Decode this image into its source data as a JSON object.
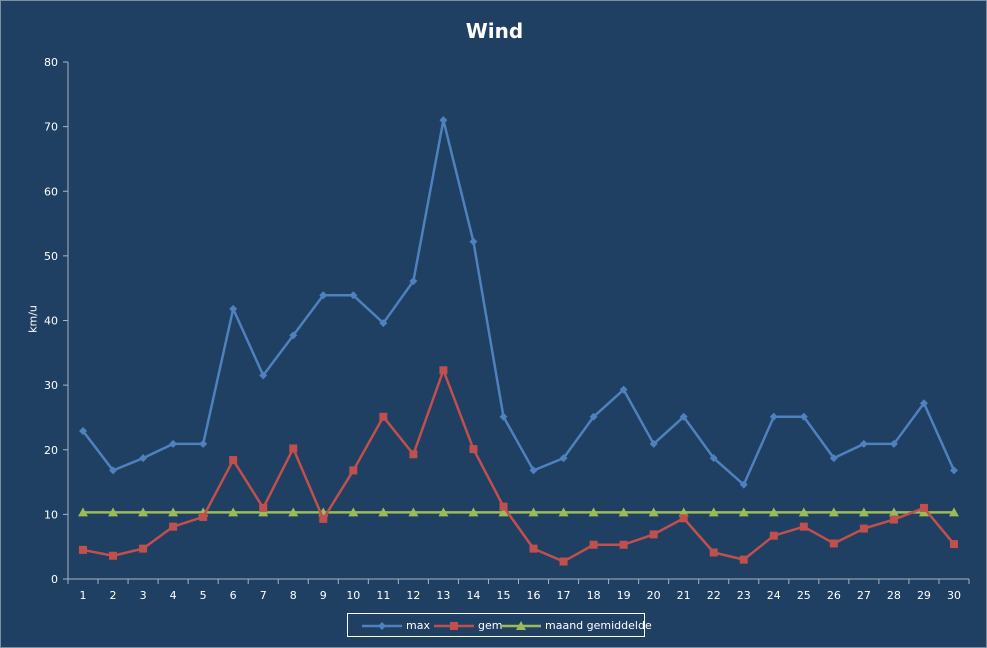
{
  "chart_data": {
    "type": "line",
    "title": "Wind",
    "xlabel": "",
    "ylabel": "km/u",
    "ylim": [
      0,
      80
    ],
    "yticks": [
      0,
      10,
      20,
      30,
      40,
      50,
      60,
      70,
      80
    ],
    "grid": false,
    "legend_position": "bottom",
    "background_color": "#1f3f63",
    "categories": [
      "1",
      "2",
      "3",
      "4",
      "5",
      "6",
      "7",
      "8",
      "9",
      "10",
      "11",
      "12",
      "13",
      "14",
      "15",
      "16",
      "17",
      "18",
      "19",
      "20",
      "21",
      "22",
      "23",
      "24",
      "25",
      "26",
      "27",
      "28",
      "29",
      "30"
    ],
    "series": [
      {
        "name": "max",
        "color": "#4f81bd",
        "marker": "diamond",
        "values": [
          22.9,
          16.8,
          18.7,
          20.9,
          20.9,
          41.8,
          31.5,
          37.7,
          43.9,
          43.9,
          39.6,
          46.1,
          71.0,
          52.2,
          25.1,
          16.8,
          18.7,
          25.1,
          29.3,
          20.9,
          25.1,
          18.7,
          14.6,
          25.1,
          25.1,
          18.7,
          20.9,
          20.9,
          27.2,
          16.8
        ]
      },
      {
        "name": "gem",
        "color": "#c0504d",
        "marker": "square",
        "values": [
          4.5,
          3.6,
          4.7,
          8.1,
          9.6,
          18.4,
          11.0,
          20.2,
          9.3,
          16.8,
          25.1,
          19.3,
          32.3,
          20.1,
          11.2,
          4.7,
          2.7,
          5.3,
          5.3,
          6.9,
          9.4,
          4.1,
          3.0,
          6.7,
          8.1,
          5.5,
          7.8,
          9.2,
          11.0,
          5.4
        ]
      },
      {
        "name": "maand gemiddelde",
        "color": "#9bbb59",
        "marker": "triangle",
        "values": [
          10.3,
          10.3,
          10.3,
          10.3,
          10.3,
          10.3,
          10.3,
          10.3,
          10.3,
          10.3,
          10.3,
          10.3,
          10.3,
          10.3,
          10.3,
          10.3,
          10.3,
          10.3,
          10.3,
          10.3,
          10.3,
          10.3,
          10.3,
          10.3,
          10.3,
          10.3,
          10.3,
          10.3,
          10.3,
          10.3
        ]
      }
    ]
  }
}
